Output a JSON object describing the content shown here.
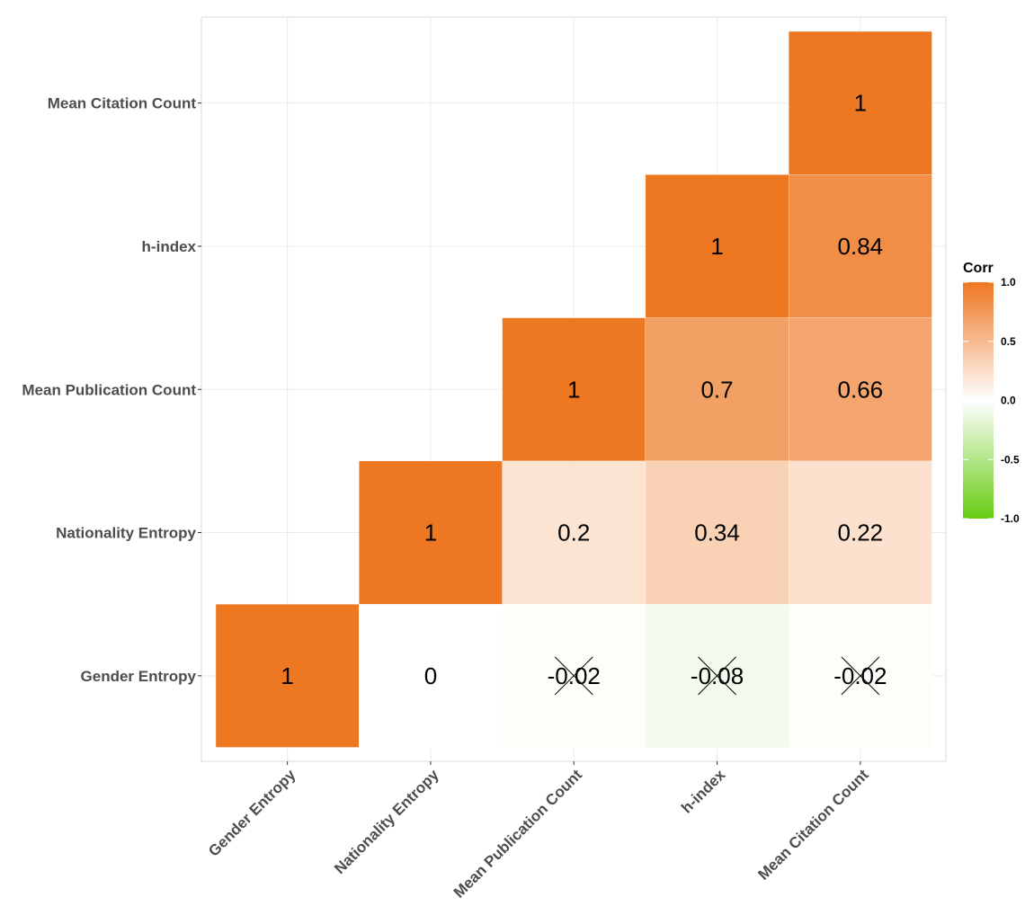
{
  "chart_data": {
    "type": "heatmap",
    "title": "",
    "xlabel": "",
    "ylabel": "",
    "variables": [
      "Gender Entropy",
      "Nationality Entropy",
      "Mean Publication Count",
      "h-index",
      "Mean Citation Count"
    ],
    "cells": [
      {
        "x": "Gender Entropy",
        "y": "Gender Entropy",
        "value": 1,
        "label": "1",
        "insignificant": false
      },
      {
        "x": "Nationality Entropy",
        "y": "Gender Entropy",
        "value": 0,
        "label": "0",
        "insignificant": false
      },
      {
        "x": "Mean Publication Count",
        "y": "Gender Entropy",
        "value": -0.02,
        "label": "-0.02",
        "insignificant": true
      },
      {
        "x": "h-index",
        "y": "Gender Entropy",
        "value": -0.08,
        "label": "-0.08",
        "insignificant": true
      },
      {
        "x": "Mean Citation Count",
        "y": "Gender Entropy",
        "value": -0.02,
        "label": "-0.02",
        "insignificant": true
      },
      {
        "x": "Nationality Entropy",
        "y": "Nationality Entropy",
        "value": 1,
        "label": "1",
        "insignificant": false
      },
      {
        "x": "Mean Publication Count",
        "y": "Nationality Entropy",
        "value": 0.2,
        "label": "0.2",
        "insignificant": false
      },
      {
        "x": "h-index",
        "y": "Nationality Entropy",
        "value": 0.34,
        "label": "0.34",
        "insignificant": false
      },
      {
        "x": "Mean Citation Count",
        "y": "Nationality Entropy",
        "value": 0.22,
        "label": "0.22",
        "insignificant": false
      },
      {
        "x": "Mean Publication Count",
        "y": "Mean Publication Count",
        "value": 1,
        "label": "1",
        "insignificant": false
      },
      {
        "x": "h-index",
        "y": "Mean Publication Count",
        "value": 0.7,
        "label": "0.7",
        "insignificant": false
      },
      {
        "x": "Mean Citation Count",
        "y": "Mean Publication Count",
        "value": 0.66,
        "label": "0.66",
        "insignificant": false
      },
      {
        "x": "h-index",
        "y": "h-index",
        "value": 1,
        "label": "1",
        "insignificant": false
      },
      {
        "x": "Mean Citation Count",
        "y": "h-index",
        "value": 0.84,
        "label": "0.84",
        "insignificant": false
      },
      {
        "x": "Mean Citation Count",
        "y": "Mean Citation Count",
        "value": 1,
        "label": "1",
        "insignificant": false
      }
    ],
    "colorscale": {
      "low": "#66CC11",
      "mid": "#FFFFFF",
      "high": "#EE7722",
      "limits": [
        -1,
        1
      ]
    },
    "legend": {
      "title": "Corr",
      "ticks": [
        "1.0",
        "0.5",
        "0.0",
        "-0.5",
        "-1.0"
      ],
      "tick_values": [
        1,
        0.5,
        0,
        -0.5,
        -1
      ],
      "position": "right"
    },
    "grid": true
  }
}
